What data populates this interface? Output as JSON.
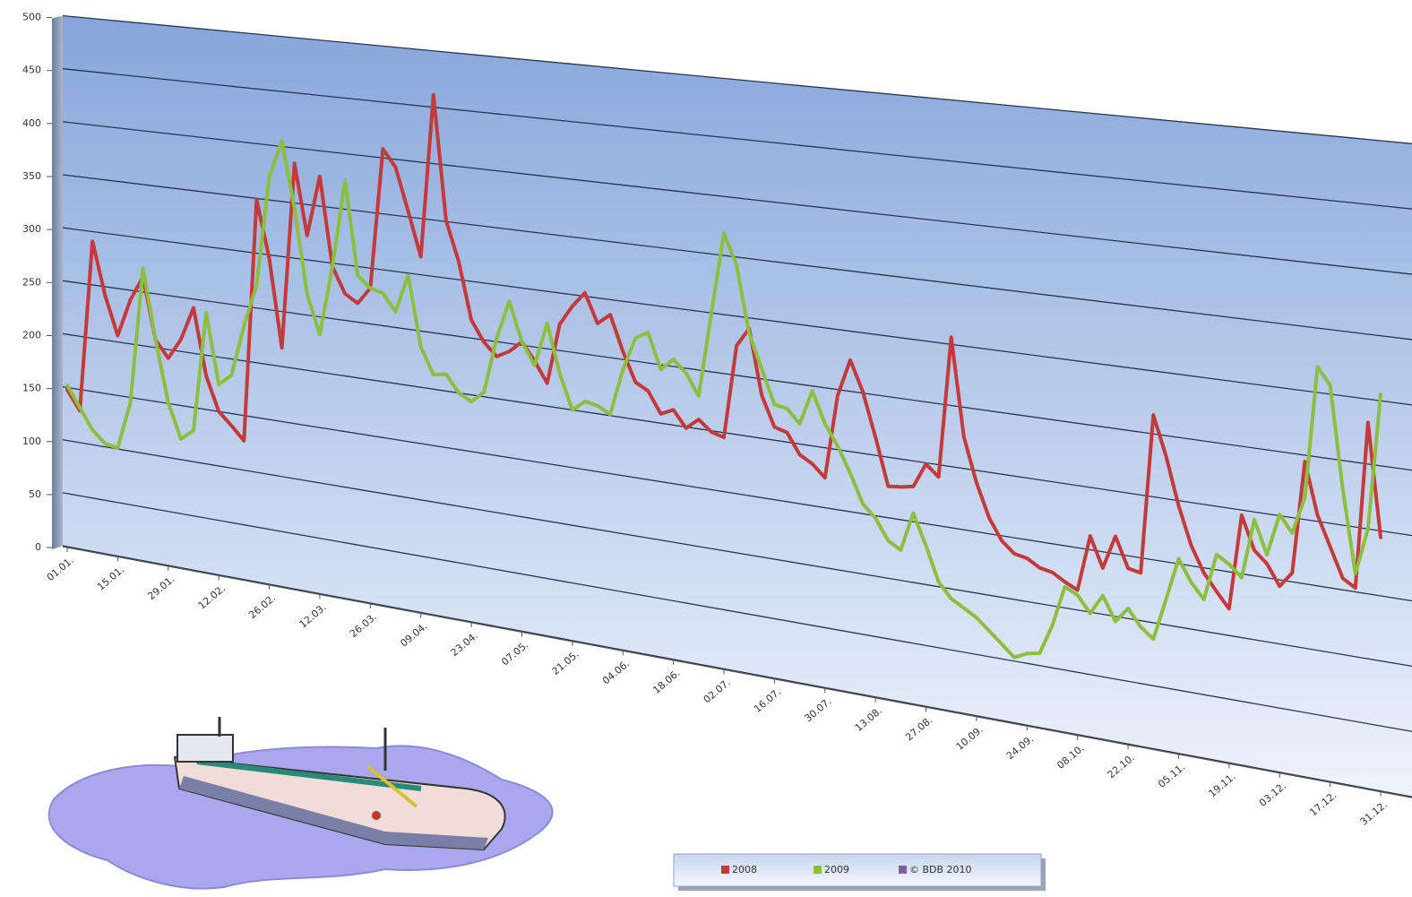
{
  "chart_data": {
    "type": "line",
    "categories": [
      "01.01.",
      null,
      null,
      null,
      "15.01.",
      null,
      null,
      null,
      "29.01.",
      null,
      null,
      null,
      "12.02.",
      null,
      null,
      null,
      "26.02.",
      null,
      null,
      null,
      "12.03.",
      null,
      null,
      null,
      "26.03.",
      null,
      null,
      null,
      "09.04.",
      null,
      null,
      null,
      "23.04.",
      null,
      null,
      null,
      "07.05.",
      null,
      null,
      null,
      "21.05.",
      null,
      null,
      null,
      "04.06.",
      null,
      null,
      null,
      "18.06.",
      null,
      null,
      null,
      "02.07.",
      null,
      null,
      null,
      "16.07.",
      null,
      null,
      null,
      "30.07.",
      null,
      null,
      null,
      "13.08.",
      null,
      null,
      null,
      "27.08.",
      null,
      null,
      null,
      "10.09.",
      null,
      null,
      null,
      "24.09.",
      null,
      null,
      null,
      "08.10.",
      null,
      null,
      null,
      "22.10.",
      null,
      null,
      null,
      "05.11.",
      null,
      null,
      null,
      "19.11.",
      null,
      null,
      null,
      "03.12.",
      null,
      null,
      null,
      "17.12.",
      null,
      null,
      null,
      "31.12."
    ],
    "series": [
      {
        "name": "2008",
        "color": "#c4393a",
        "values": [
          148,
          130,
          291,
          242,
          206,
          241,
          264,
          207,
          192,
          211,
          242,
          181,
          150,
          139,
          127,
          349,
          297,
          217,
          386,
          322,
          377,
          297,
          274,
          267,
          282,
          408,
          393,
          355,
          316,
          461,
          351,
          316,
          266,
          248,
          237,
          243,
          253,
          238,
          220,
          273,
          290,
          303,
          278,
          287,
          257,
          232,
          226,
          208,
          213,
          199,
          208,
          199,
          196,
          275,
          291,
          236,
          211,
          208,
          191,
          185,
          175,
          245,
          276,
          251,
          215,
          176,
          177,
          179,
          199,
          190,
          306,
          226,
          190,
          163,
          146,
          137,
          135,
          129,
          127,
          121,
          116,
          161,
          137,
          164,
          140,
          138,
          265,
          234,
          196,
          166,
          146,
          133,
          121,
          196,
          170,
          161,
          145,
          157,
          245,
          205,
          182,
          159,
          153,
          282,
          195
        ]
      },
      {
        "name": "2009",
        "color": "#8cbf3f",
        "values": [
          152,
          133,
          114,
          103,
          101,
          145,
          272,
          207,
          151,
          119,
          129,
          239,
          175,
          185,
          232,
          271,
          371,
          405,
          345,
          269,
          234,
          297,
          376,
          292,
          282,
          279,
          264,
          298,
          236,
          213,
          215,
          200,
          194,
          204,
          253,
          287,
          253,
          234,
          272,
          230,
          200,
          209,
          207,
          201,
          241,
          270,
          276,
          246,
          256,
          246,
          228,
          299,
          369,
          343,
          287,
          258,
          230,
          228,
          217,
          246,
          220,
          203,
          182,
          158,
          148,
          131,
          125,
          157,
          132,
          104,
          92,
          86,
          80,
          71,
          62,
          53,
          58,
          60,
          84,
          117,
          112,
          99,
          115,
          96,
          108,
          95,
          87,
          120,
          154,
          137,
          125,
          162,
          156,
          147,
          194,
          168,
          201,
          188,
          217,
          320,
          307,
          228,
          164,
          200,
          305
        ]
      },
      {
        "name": "© BDB 2010",
        "color": "#7d60a0",
        "values": [
          null,
          null,
          null,
          null,
          null,
          null,
          null,
          null,
          null,
          null,
          null,
          null,
          null,
          null,
          null,
          null,
          null,
          null,
          null,
          null,
          null,
          null,
          null,
          null,
          null,
          null,
          null,
          null,
          null,
          null,
          null,
          null,
          null,
          null,
          null,
          null,
          null,
          null,
          null,
          null,
          null,
          null,
          null,
          null,
          null,
          null,
          null,
          null,
          null,
          null,
          null,
          null,
          null,
          null,
          null,
          null,
          null,
          null,
          null,
          null,
          null,
          null,
          null,
          null,
          null,
          null,
          null,
          null,
          null,
          null,
          null,
          null,
          null,
          null,
          null,
          null,
          null,
          null,
          null,
          null,
          null,
          null,
          null,
          null,
          null,
          null,
          null,
          null,
          null,
          null,
          null,
          null,
          null,
          null,
          null,
          null,
          null,
          null,
          null,
          null,
          null,
          null,
          null,
          null,
          null
        ]
      }
    ],
    "ylim": [
      0,
      500
    ],
    "yticks": [
      0,
      50,
      100,
      150,
      200,
      250,
      300,
      350,
      400,
      450,
      500
    ],
    "grid": true
  }
}
